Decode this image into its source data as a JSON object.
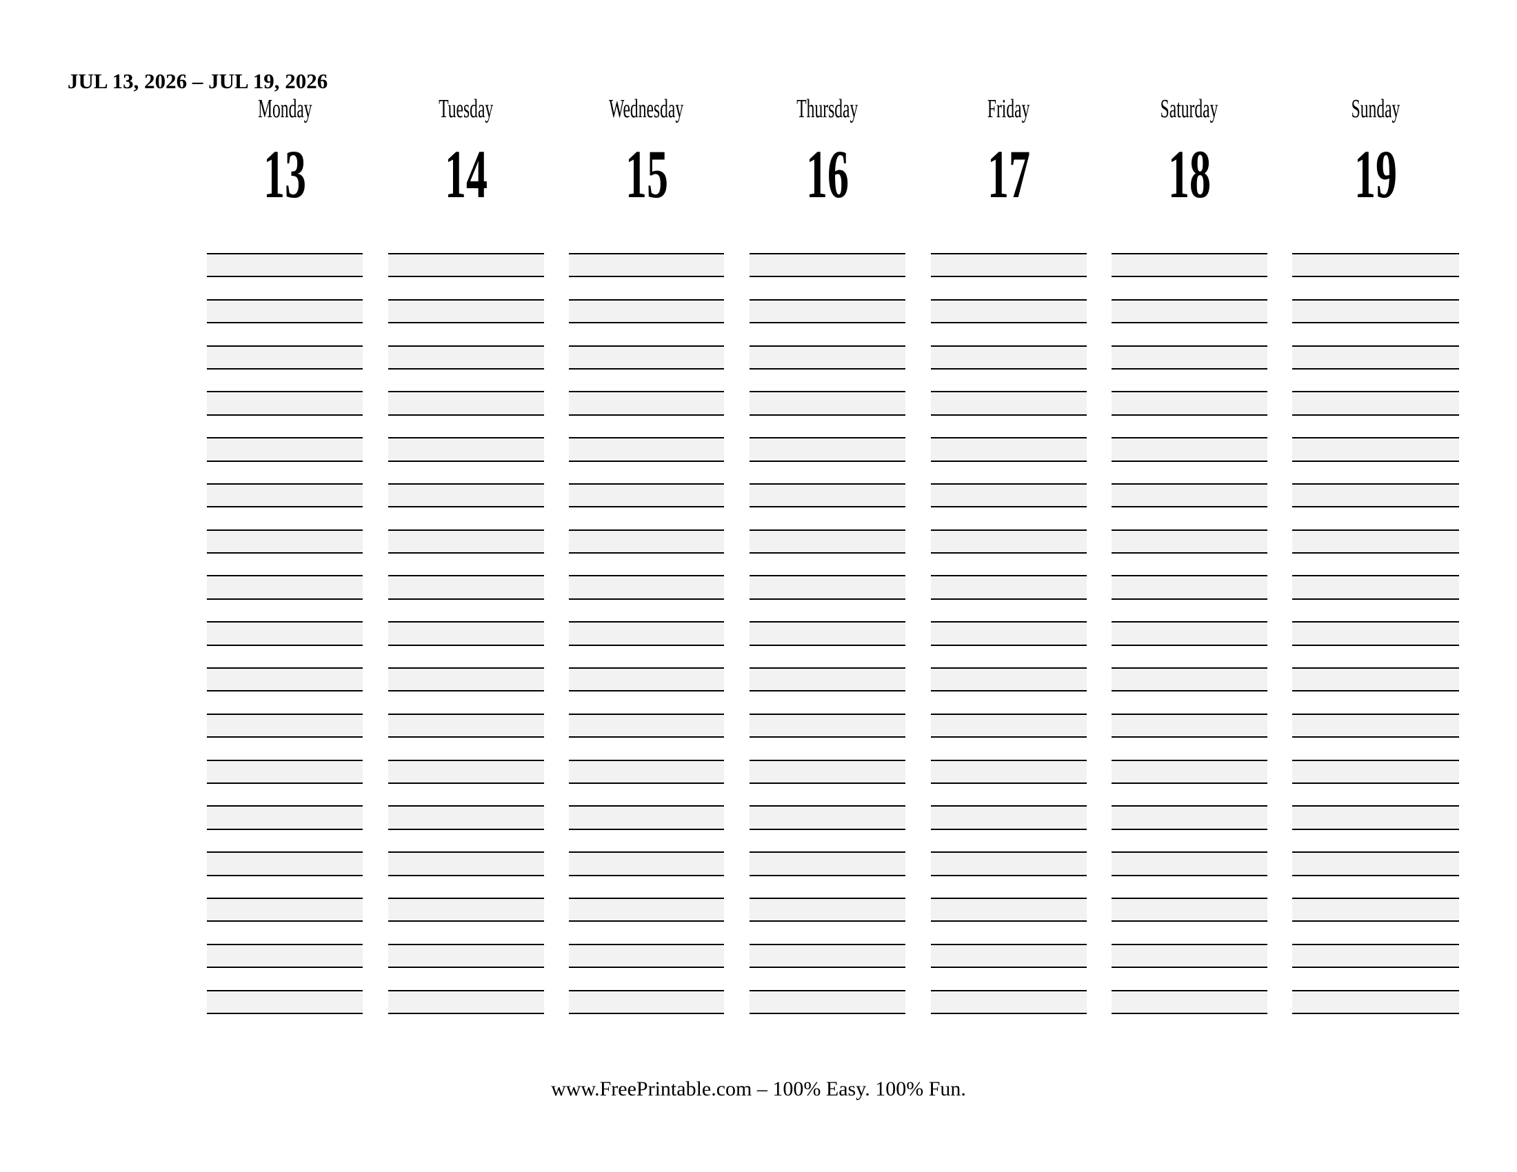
{
  "header": {
    "date_range": "JUL 13, 2026 – JUL 19, 2026"
  },
  "days": [
    {
      "name": "Monday",
      "date": "13"
    },
    {
      "name": "Tuesday",
      "date": "14"
    },
    {
      "name": "Wednesday",
      "date": "15"
    },
    {
      "name": "Thursday",
      "date": "16"
    },
    {
      "name": "Friday",
      "date": "17"
    },
    {
      "name": "Saturday",
      "date": "18"
    },
    {
      "name": "Sunday",
      "date": "19"
    }
  ],
  "footer": {
    "text": "www.FreePrintable.com – 100% Easy. 100% Fun."
  },
  "colors": {
    "band_fill": "#f2f2f2",
    "line": "#000000"
  }
}
